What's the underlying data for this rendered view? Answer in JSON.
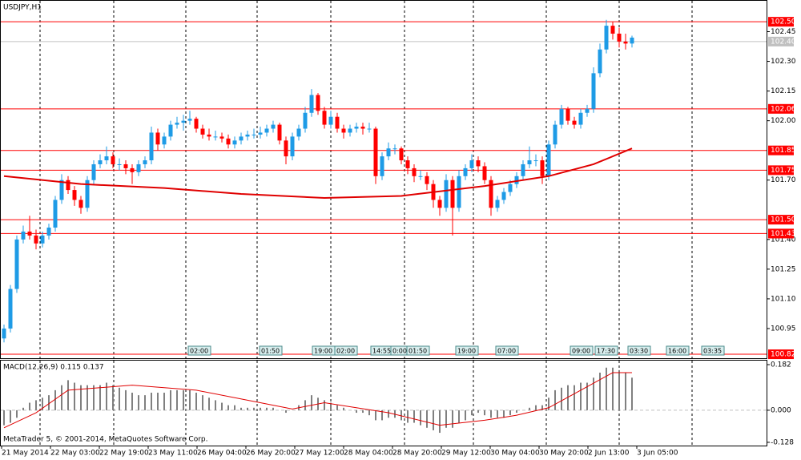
{
  "chart_data": {
    "type": "candlestick",
    "title": "USDJPY,H1",
    "ylim": [
      100.8,
      102.61
    ],
    "yticks": [
      102.45,
      {
        "value": 102.3,
        "label": "102.30"
      },
      102.15,
      {
        "value": 102.0,
        "label": "102.00"
      },
      {
        "value": 101.7,
        "label": "101.70"
      },
      {
        "value": 101.4,
        "label": "101.40"
      },
      101.25,
      {
        "value": 101.1,
        "label": "101.10"
      },
      100.95
    ],
    "levels": [
      {
        "value": 102.5,
        "label": "102.50"
      },
      102.06,
      101.85,
      101.75,
      {
        "value": 101.5,
        "label": "101.50"
      },
      101.43,
      100.82
    ],
    "level_color": "#ff0000",
    "bid": {
      "value": 102.4,
      "label": "102.40"
    },
    "up_color": "#1e9be6",
    "down_color": "#ff0000",
    "categories": [
      "21 May 2014",
      "22 May 03:00",
      "22 May 19:00",
      "23 May 11:00",
      "26 May 04:00",
      "26 May 20:00",
      "27 May 12:00",
      "28 May 04:00",
      "28 May 20:00",
      "29 May 12:00",
      "30 May 04:00",
      "30 May 20:00",
      "2 Jun 13:00",
      "3 Jun 05:00"
    ],
    "candles": [
      [
        100.9,
        100.97,
        100.88,
        100.95
      ],
      [
        100.95,
        101.17,
        100.93,
        101.15
      ],
      [
        101.15,
        101.42,
        101.13,
        101.4
      ],
      [
        101.4,
        101.47,
        101.38,
        101.44
      ],
      [
        101.44,
        101.52,
        101.4,
        101.42
      ],
      [
        101.42,
        101.45,
        101.35,
        101.38
      ],
      [
        101.38,
        101.44,
        101.36,
        101.42
      ],
      [
        101.42,
        101.48,
        101.4,
        101.46
      ],
      [
        101.46,
        101.62,
        101.44,
        101.6
      ],
      [
        101.6,
        101.73,
        101.58,
        101.7
      ],
      [
        101.7,
        101.72,
        101.63,
        101.65
      ],
      [
        101.65,
        101.67,
        101.57,
        101.6
      ],
      [
        101.6,
        101.62,
        101.53,
        101.56
      ],
      [
        101.56,
        101.72,
        101.54,
        101.7
      ],
      [
        101.7,
        101.8,
        101.68,
        101.78
      ],
      [
        101.78,
        101.83,
        101.76,
        101.8
      ],
      [
        101.8,
        101.87,
        101.78,
        101.82
      ],
      [
        101.82,
        101.84,
        101.76,
        101.78
      ],
      [
        101.78,
        101.81,
        101.75,
        101.78
      ],
      [
        101.78,
        101.8,
        101.73,
        101.76
      ],
      [
        101.76,
        101.78,
        101.68,
        101.74
      ],
      [
        101.74,
        101.8,
        101.72,
        101.78
      ],
      [
        101.78,
        101.82,
        101.76,
        101.8
      ],
      [
        101.8,
        101.97,
        101.78,
        101.94
      ],
      [
        101.94,
        101.96,
        101.85,
        101.88
      ],
      [
        101.88,
        101.94,
        101.86,
        101.92
      ],
      [
        101.92,
        102.0,
        101.9,
        101.98
      ],
      [
        101.98,
        102.02,
        101.96,
        101.99
      ],
      [
        101.99,
        102.03,
        101.95,
        102.0
      ],
      [
        102.0,
        102.05,
        101.98,
        102.01
      ],
      [
        102.01,
        102.02,
        101.94,
        101.96
      ],
      [
        101.96,
        101.98,
        101.91,
        101.93
      ],
      [
        101.93,
        101.96,
        101.9,
        101.92
      ],
      [
        101.92,
        101.95,
        101.9,
        101.92
      ],
      [
        101.92,
        101.94,
        101.89,
        101.91
      ],
      [
        101.91,
        101.93,
        101.86,
        101.88
      ],
      [
        101.88,
        101.92,
        101.86,
        101.9
      ],
      [
        101.9,
        101.94,
        101.88,
        101.92
      ],
      [
        101.92,
        101.95,
        101.9,
        101.93
      ],
      [
        101.93,
        101.96,
        101.91,
        101.93
      ],
      [
        101.93,
        101.97,
        101.91,
        101.94
      ],
      [
        101.94,
        101.98,
        101.92,
        101.96
      ],
      [
        101.96,
        102.0,
        101.94,
        101.98
      ],
      [
        101.98,
        101.99,
        101.88,
        101.9
      ],
      [
        101.9,
        101.92,
        101.78,
        101.82
      ],
      [
        101.82,
        101.94,
        101.8,
        101.92
      ],
      [
        101.92,
        101.98,
        101.9,
        101.96
      ],
      [
        101.96,
        102.07,
        101.94,
        102.04
      ],
      [
        102.04,
        102.16,
        102.02,
        102.13
      ],
      [
        102.13,
        102.14,
        102.03,
        102.05
      ],
      [
        102.05,
        102.07,
        101.96,
        101.98
      ],
      [
        101.98,
        102.05,
        101.96,
        102.02
      ],
      [
        102.02,
        102.04,
        101.94,
        101.96
      ],
      [
        101.96,
        101.98,
        101.91,
        101.94
      ],
      [
        101.94,
        101.98,
        101.92,
        101.96
      ],
      [
        101.96,
        101.99,
        101.94,
        101.97
      ],
      [
        101.97,
        101.99,
        101.93,
        101.96
      ],
      [
        101.96,
        101.99,
        101.94,
        101.96
      ],
      [
        101.96,
        101.97,
        101.68,
        101.72
      ],
      [
        101.72,
        101.84,
        101.7,
        101.82
      ],
      [
        101.82,
        101.89,
        101.8,
        101.86
      ],
      [
        101.86,
        101.88,
        101.83,
        101.86
      ],
      [
        101.86,
        101.87,
        101.78,
        101.8
      ],
      [
        101.8,
        101.82,
        101.73,
        101.76
      ],
      [
        101.76,
        101.78,
        101.69,
        101.72
      ],
      [
        101.72,
        101.75,
        101.7,
        101.72
      ],
      [
        101.72,
        101.74,
        101.65,
        101.68
      ],
      [
        101.68,
        101.7,
        101.56,
        101.6
      ],
      [
        101.6,
        101.62,
        101.52,
        101.56
      ],
      [
        101.56,
        101.73,
        101.54,
        101.7
      ],
      [
        101.7,
        101.72,
        101.42,
        101.56
      ],
      [
        101.56,
        101.75,
        101.54,
        101.72
      ],
      [
        101.72,
        101.78,
        101.7,
        101.76
      ],
      [
        101.76,
        101.83,
        101.74,
        101.8
      ],
      [
        101.8,
        101.82,
        101.74,
        101.77
      ],
      [
        101.77,
        101.79,
        101.68,
        101.7
      ],
      [
        101.7,
        101.72,
        101.52,
        101.56
      ],
      [
        101.56,
        101.62,
        101.54,
        101.6
      ],
      [
        101.6,
        101.66,
        101.58,
        101.64
      ],
      [
        101.64,
        101.7,
        101.62,
        101.68
      ],
      [
        101.68,
        101.74,
        101.66,
        101.72
      ],
      [
        101.72,
        101.8,
        101.7,
        101.78
      ],
      [
        101.78,
        101.87,
        101.76,
        101.8
      ],
      [
        101.8,
        101.83,
        101.77,
        101.8
      ],
      [
        101.8,
        101.82,
        101.68,
        101.72
      ],
      [
        101.72,
        101.9,
        101.7,
        101.88
      ],
      [
        101.88,
        102.0,
        101.86,
        101.98
      ],
      [
        101.98,
        102.08,
        101.96,
        102.06
      ],
      [
        102.06,
        102.07,
        101.98,
        102.0
      ],
      [
        102.0,
        102.02,
        101.96,
        101.98
      ],
      [
        101.98,
        102.06,
        101.96,
        102.04
      ],
      [
        102.04,
        102.08,
        102.02,
        102.06
      ],
      [
        102.06,
        102.27,
        102.04,
        102.24
      ],
      [
        102.24,
        102.39,
        102.22,
        102.36
      ],
      [
        102.36,
        102.51,
        102.34,
        102.48
      ],
      [
        102.48,
        102.5,
        102.41,
        102.44
      ],
      [
        102.44,
        102.47,
        102.37,
        102.4
      ],
      [
        102.4,
        102.44,
        102.36,
        102.39
      ],
      [
        102.39,
        102.43,
        102.37,
        102.42
      ]
    ],
    "ma": {
      "color": "#e00000",
      "x": [
        0,
        12,
        25,
        37,
        50,
        62,
        75,
        85,
        92,
        98
      ],
      "values": [
        101.72,
        101.68,
        101.66,
        101.63,
        101.61,
        101.62,
        101.67,
        101.72,
        101.78,
        101.86
      ]
    },
    "events": [
      "02:00",
      "01:50",
      "19:00",
      "02:00",
      "14:55",
      "0:00",
      "01:50",
      "19:00",
      "07:00",
      "09:00",
      "17:30",
      "03:30",
      "16:00",
      "03:35"
    ],
    "macd": {
      "label": "MACD(12,26,9) 0.115 0.137",
      "ylim": [
        -0.141,
        0.198
      ],
      "yticks": [
        0.182,
        {
          "value": 0,
          "label": "0.000"
        },
        -0.128
      ],
      "hist_color": "#808080",
      "signal_color": "#e00000",
      "hist": [
        -0.06,
        -0.05,
        -0.03,
        0.01,
        0.03,
        0.04,
        0.05,
        0.06,
        0.08,
        0.1,
        0.12,
        0.11,
        0.1,
        0.1,
        0.1,
        0.1,
        0.11,
        0.1,
        0.09,
        0.08,
        0.07,
        0.06,
        0.06,
        0.07,
        0.07,
        0.07,
        0.08,
        0.08,
        0.08,
        0.08,
        0.07,
        0.06,
        0.05,
        0.04,
        0.03,
        0.02,
        0.02,
        0.01,
        0.01,
        0.01,
        0.01,
        0.01,
        0.01,
        0.0,
        -0.01,
        0.0,
        0.02,
        0.04,
        0.06,
        0.05,
        0.04,
        0.03,
        0.02,
        0.01,
        0.0,
        -0.01,
        -0.01,
        -0.02,
        -0.04,
        -0.04,
        -0.03,
        -0.03,
        -0.04,
        -0.05,
        -0.05,
        -0.06,
        -0.07,
        -0.08,
        -0.09,
        -0.07,
        -0.07,
        -0.05,
        -0.04,
        -0.02,
        -0.01,
        -0.02,
        -0.03,
        -0.03,
        -0.03,
        -0.02,
        -0.01,
        0.0,
        0.01,
        0.02,
        0.02,
        0.05,
        0.08,
        0.09,
        0.1,
        0.1,
        0.11,
        0.11,
        0.13,
        0.15,
        0.17,
        0.17,
        0.16,
        0.15,
        0.13
      ],
      "signal": {
        "x": [
          0,
          5,
          10,
          20,
          30,
          40,
          45,
          50,
          60,
          68,
          75,
          80,
          85,
          90,
          95,
          98
        ],
        "values": [
          -0.07,
          -0.01,
          0.08,
          0.1,
          0.08,
          0.03,
          0.005,
          0.03,
          -0.01,
          -0.06,
          -0.04,
          -0.02,
          0.01,
          0.08,
          0.15,
          0.15
        ]
      }
    },
    "footer": "MetaTrader 5, © 2001-2014, MetaQuotes Software Corp."
  }
}
